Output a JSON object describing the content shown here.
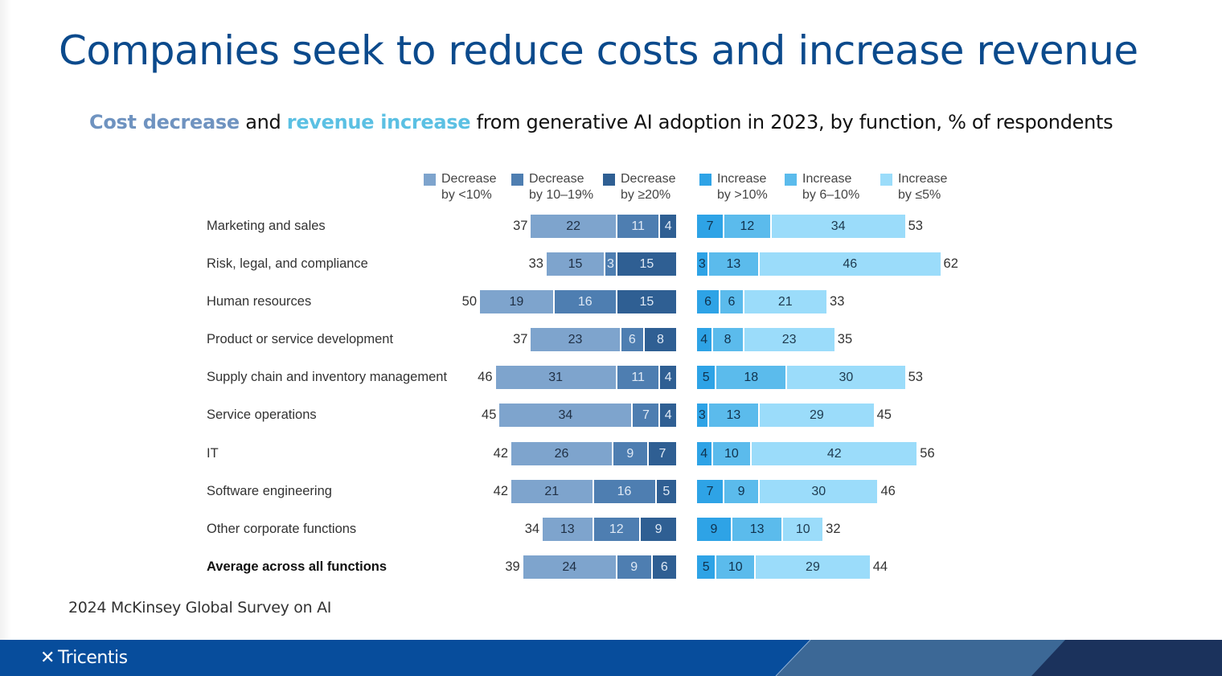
{
  "slide": {
    "title": "Companies seek to reduce costs and increase revenue",
    "subtitle": {
      "cost_part": "Cost decrease",
      "and_part": " and ",
      "revenue_part": "revenue increase",
      "rest": " from generative AI adoption in 2023, by function, % of respondents"
    },
    "source": "2024 McKinsey Global Survey on AI",
    "footer": {
      "logo_text": "Tricentis",
      "logo_icon": "tricentis-x-icon"
    }
  },
  "colors": {
    "title": "#0b4a8c",
    "cost_highlight": "#6f93c0",
    "revenue_highlight": "#5bc0e3",
    "footer_blue": "#074d9c",
    "footer_mid": "#3c6896",
    "footer_dark": "#1b325c"
  },
  "chart_data": {
    "type": "bar",
    "orientation": "horizontal-diverging-stacked",
    "title": "Cost decrease and revenue increase from generative AI adoption in 2023, by function, % of respondents",
    "unit": "% of respondents",
    "categories": [
      "Marketing and sales",
      "Risk, legal, and compliance",
      "Human resources",
      "Product or service development",
      "Supply chain and inventory management",
      "Service operations",
      "IT",
      "Software engineering",
      "Other corporate functions",
      "Average across all functions"
    ],
    "bold_categories": [
      "Average across all functions"
    ],
    "legend": [
      {
        "line1": "Decrease",
        "line2": "by <10%",
        "color": "#7ea4cd"
      },
      {
        "line1": "Decrease",
        "line2": "by 10–19%",
        "color": "#4e7eb1"
      },
      {
        "line1": "Decrease",
        "line2": "by ≥20%",
        "color": "#2f5f93"
      },
      {
        "line1": "Increase",
        "line2": "by >10%",
        "color": "#2ea3e6"
      },
      {
        "line1": "Increase",
        "line2": "by 6–10%",
        "color": "#5bbbec"
      },
      {
        "line1": "Increase",
        "line2": "by ≤5%",
        "color": "#9bdcfa"
      }
    ],
    "cost_series": [
      {
        "name": "Decrease by <10%",
        "color": "#7ea4cd",
        "text_color": "#1f2f44",
        "values": [
          22,
          15,
          19,
          23,
          31,
          34,
          26,
          21,
          13,
          24
        ]
      },
      {
        "name": "Decrease by 10–19%",
        "color": "#4e7eb1",
        "text_color": "#dfe9f5",
        "values": [
          11,
          3,
          16,
          6,
          11,
          7,
          9,
          16,
          12,
          9
        ]
      },
      {
        "name": "Decrease by ≥20%",
        "color": "#2f5f93",
        "text_color": "#dfe9f5",
        "values": [
          4,
          15,
          15,
          8,
          4,
          4,
          7,
          5,
          9,
          6
        ]
      }
    ],
    "cost_totals": [
      37,
      33,
      50,
      37,
      46,
      45,
      42,
      42,
      34,
      39
    ],
    "revenue_series": [
      {
        "name": "Increase by >10%",
        "color": "#2ea3e6",
        "text_color": "#10324d",
        "values": [
          7,
          3,
          6,
          4,
          5,
          3,
          4,
          7,
          9,
          5
        ]
      },
      {
        "name": "Increase by 6–10%",
        "color": "#5bbbec",
        "text_color": "#10324d",
        "values": [
          12,
          13,
          6,
          8,
          18,
          13,
          10,
          9,
          13,
          10
        ]
      },
      {
        "name": "Increase by ≤5%",
        "color": "#9bdcfa",
        "text_color": "#1e3a4f",
        "values": [
          34,
          46,
          21,
          23,
          30,
          29,
          42,
          30,
          10,
          29
        ]
      }
    ],
    "revenue_totals": [
      53,
      62,
      33,
      35,
      53,
      45,
      56,
      46,
      32,
      44
    ],
    "xlabel": "",
    "ylabel": "",
    "grid": false,
    "legend_position": "top"
  }
}
